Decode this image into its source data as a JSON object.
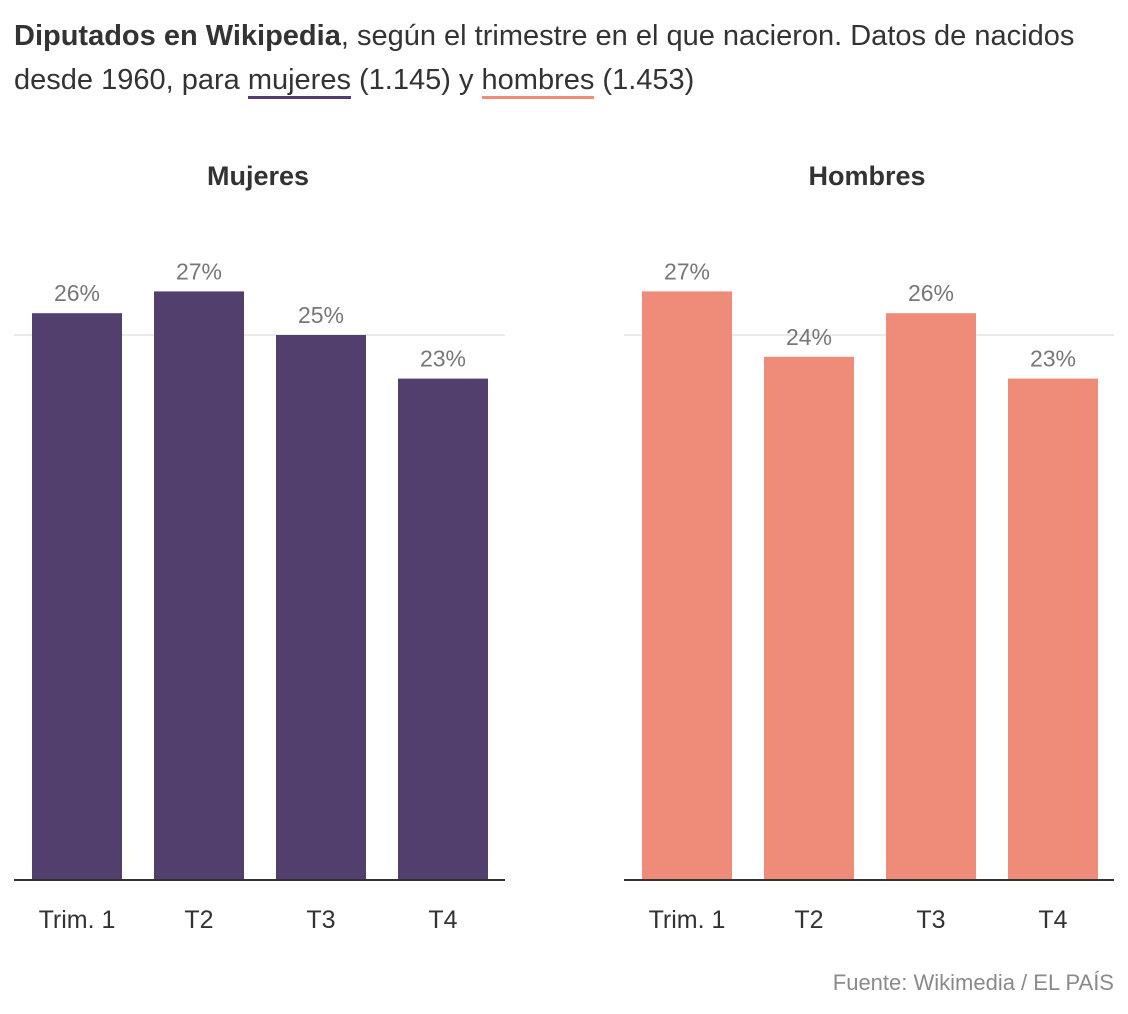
{
  "title": {
    "bold": "Diputados en Wikipedia",
    "text1": ", según el trimestre en el que nacieron. Datos de nacidos desde 1960, para ",
    "women_word": "mujeres",
    "women_count": " (1.145) y ",
    "men_word": "hombres",
    "men_count": " (1.453)"
  },
  "source": "Fuente: Wikimedia / EL PAÍS",
  "colors": {
    "women": "#533f6e",
    "men": "#ef8b79",
    "text": "#333333",
    "label": "#777777",
    "grid": "#e3e3e3",
    "axis": "#333333"
  },
  "chart_data": [
    {
      "type": "bar",
      "title": "Mujeres",
      "categories": [
        "Trim. 1",
        "T2",
        "T3",
        "T4"
      ],
      "values": [
        26,
        27,
        25,
        23
      ],
      "value_labels": [
        "26%",
        "27%",
        "25%",
        "23%"
      ],
      "ylim": [
        0,
        28
      ],
      "gridlines": [
        25
      ],
      "color": "#533f6e"
    },
    {
      "type": "bar",
      "title": "Hombres",
      "categories": [
        "Trim. 1",
        "T2",
        "T3",
        "T4"
      ],
      "values": [
        27,
        24,
        26,
        23
      ],
      "value_labels": [
        "27%",
        "24%",
        "26%",
        "23%"
      ],
      "ylim": [
        0,
        28
      ],
      "gridlines": [
        25
      ],
      "color": "#ef8b79"
    }
  ]
}
